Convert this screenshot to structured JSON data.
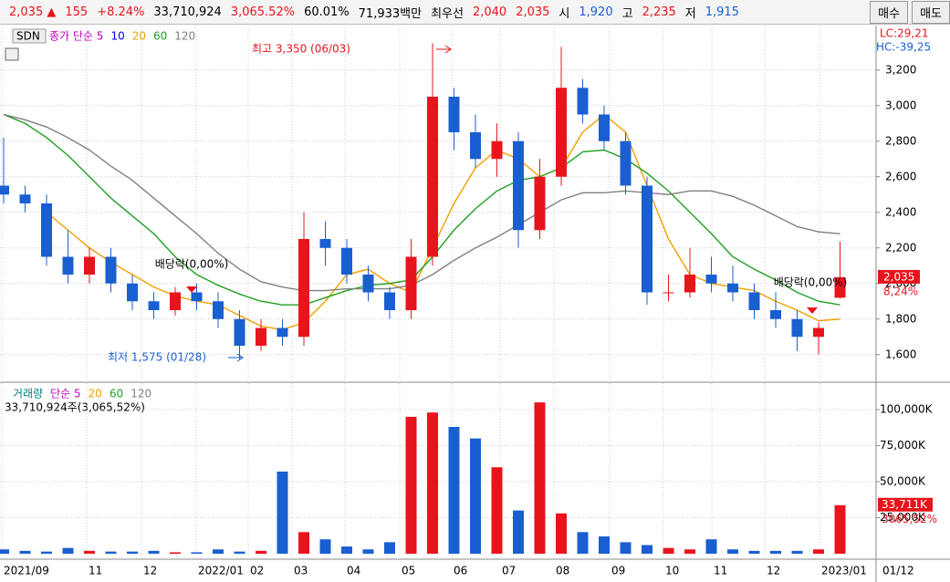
{
  "toolbar": {
    "items": [
      {
        "text": "2,035 ▲",
        "color": "#e8141c"
      },
      {
        "text": "155",
        "color": "#e8141c"
      },
      {
        "text": "+8.24%",
        "color": "#e8141c"
      },
      {
        "text": "33,710,924",
        "color": "#000000"
      },
      {
        "text": "3,065.52%",
        "color": "#e8141c"
      },
      {
        "text": "60.01%",
        "color": "#000000"
      },
      {
        "text": "71,933백만",
        "color": "#000000"
      },
      {
        "text": "최우선",
        "color": "#000000"
      },
      {
        "text": "2,040",
        "color": "#e8141c"
      },
      {
        "text": "2,035",
        "color": "#e8141c"
      },
      {
        "text": "시",
        "color": "#000000"
      },
      {
        "text": "1,920",
        "color": "#1a5fd0"
      },
      {
        "text": "고",
        "color": "#000000"
      },
      {
        "text": "2,235",
        "color": "#e8141c"
      },
      {
        "text": "저",
        "color": "#000000"
      },
      {
        "text": "1,915",
        "color": "#1a5fd0"
      }
    ],
    "buttons": [
      "매수",
      "매도"
    ]
  },
  "chart_data": [
    {
      "type": "candlestick",
      "symbol": "SDN",
      "legend": [
        {
          "text": "종가 단순 5",
          "color": "#c000c0"
        },
        {
          "text": "10",
          "color": "#0000ff"
        }
      ],
      "up_color": "#e8141c",
      "down_color": "#1a5fd0",
      "open": [
        2550,
        2500,
        2450,
        2150,
        2050,
        2150,
        2000,
        1900,
        1850,
        1950,
        1900,
        1800,
        1650,
        1750,
        1700,
        2250,
        2200,
        2050,
        1950,
        1850,
        2150,
        3050,
        2850,
        2700,
        2800,
        2300,
        2600,
        3100,
        2950,
        2800,
        2550,
        1950,
        1950,
        2050,
        2000,
        1950,
        1850,
        1800,
        1700,
        1920
      ],
      "high": [
        2820,
        2550,
        2500,
        2300,
        2200,
        2200,
        2050,
        1950,
        1980,
        2000,
        1950,
        1850,
        1800,
        1800,
        2400,
        2350,
        2250,
        2100,
        1980,
        2250,
        3350,
        3100,
        2950,
        2900,
        2850,
        2700,
        3330,
        3150,
        3000,
        2850,
        2600,
        2050,
        2200,
        2150,
        2100,
        2000,
        1950,
        1850,
        1780,
        2235
      ],
      "low": [
        2450,
        2400,
        2100,
        2000,
        2000,
        1950,
        1850,
        1800,
        1820,
        1850,
        1750,
        1575,
        1620,
        1650,
        1650,
        2100,
        2000,
        1900,
        1800,
        1800,
        2100,
        2750,
        2650,
        2600,
        2200,
        2250,
        2550,
        2900,
        2750,
        2500,
        1880,
        1900,
        1920,
        1950,
        1900,
        1800,
        1750,
        1620,
        1600,
        1915
      ],
      "close": [
        2500,
        2450,
        2150,
        2050,
        2150,
        2000,
        1900,
        1850,
        1950,
        1900,
        1800,
        1650,
        1750,
        1700,
        2250,
        2200,
        2050,
        1950,
        1850,
        2150,
        3050,
        2850,
        2700,
        2800,
        2300,
        2600,
        3100,
        2950,
        2800,
        2550,
        1950,
        1950,
        2050,
        2000,
        1950,
        1850,
        1800,
        1700,
        1750,
        2035
      ],
      "series": [
        {
          "name": "20",
          "color": "#f0a000",
          "values": [
            null,
            null,
            2400,
            2300,
            2200,
            2120,
            2050,
            1980,
            1930,
            1900,
            1880,
            1820,
            1760,
            1740,
            1780,
            1900,
            2050,
            2080,
            2000,
            1950,
            2200,
            2450,
            2650,
            2750,
            2700,
            2600,
            2650,
            2850,
            2950,
            2850,
            2550,
            2250,
            2050,
            2000,
            1980,
            1960,
            1900,
            1850,
            1790,
            1800
          ]
        },
        {
          "name": "60",
          "color": "#20a020",
          "values": [
            2950,
            2900,
            2820,
            2720,
            2600,
            2480,
            2380,
            2280,
            2150,
            2050,
            1990,
            1940,
            1900,
            1880,
            1880,
            1920,
            1960,
            1990,
            2000,
            2020,
            2150,
            2300,
            2420,
            2520,
            2580,
            2600,
            2650,
            2740,
            2750,
            2700,
            2620,
            2520,
            2400,
            2280,
            2150,
            2080,
            2020,
            1950,
            1900,
            1880
          ]
        },
        {
          "name": "120",
          "color": "#808080",
          "values": [
            2950,
            2920,
            2880,
            2820,
            2750,
            2660,
            2580,
            2480,
            2380,
            2280,
            2170,
            2080,
            2010,
            1980,
            1960,
            1960,
            1970,
            1970,
            1970,
            1990,
            2050,
            2130,
            2200,
            2260,
            2330,
            2400,
            2470,
            2510,
            2510,
            2520,
            2510,
            2500,
            2520,
            2520,
            2490,
            2440,
            2380,
            2320,
            2290,
            2280
          ]
        }
      ],
      "annotations": [
        {
          "text": "최고 3,350 (06/03)",
          "color": "#e8141c"
        },
        {
          "text": "최저 1,575 (01/28)",
          "color": "#1a5fd0"
        },
        {
          "text": "배당락(0,00%)",
          "color": "#000000"
        },
        {
          "text": "배당락(0,00%)",
          "color": "#000000"
        }
      ],
      "lc": "LC:29,21",
      "hc": "HC:-39,25",
      "last_price": {
        "value": 2035,
        "label": "2,035"
      },
      "last_change": "8,24%",
      "ylim": [
        1450,
        3450
      ],
      "yticks": [
        {
          "value": 1600,
          "label": "1,600"
        },
        {
          "value": 1800,
          "label": "1,800"
        },
        {
          "value": 2000,
          "label": "2,000"
        },
        {
          "value": 2200,
          "label": "2,200"
        },
        {
          "value": 2400,
          "label": "2,400"
        },
        {
          "value": 2600,
          "label": "2,600"
        },
        {
          "value": 2800,
          "label": "2,800"
        },
        {
          "value": 3000,
          "label": "3,000"
        },
        {
          "value": 3200,
          "label": "3,200"
        }
      ],
      "grid": true
    },
    {
      "type": "bar",
      "legend": [
        {
          "text": "거래량",
          "color": "#008080"
        },
        {
          "text": "단순 5",
          "color": "#c000c0"
        },
        {
          "text": "20",
          "color": "#f0a000"
        },
        {
          "text": "60",
          "color": "#20a020"
        },
        {
          "text": "120",
          "color": "#808080"
        }
      ],
      "subtitle": "33,710,924주(3,065,52%)",
      "values": [
        3000,
        2000,
        1500,
        4000,
        2000,
        1500,
        1500,
        2000,
        1000,
        1000,
        3000,
        1500,
        2000,
        57000,
        15000,
        10000,
        5000,
        3000,
        8000,
        95000,
        98000,
        88000,
        80000,
        60000,
        30000,
        105000,
        28000,
        15000,
        12000,
        8000,
        6000,
        4000,
        3000,
        10000,
        3000,
        2000,
        2000,
        2000,
        3000,
        33711
      ],
      "last_volume": {
        "value": 33711,
        "label": "33,711K"
      },
      "last_ratio": "3065,52%",
      "ylim": [
        0,
        118000
      ],
      "yticks": [
        {
          "value": 25000,
          "label": "25,000K"
        },
        {
          "value": 50000,
          "label": "50,000K"
        },
        {
          "value": 75000,
          "label": "75,000K"
        },
        {
          "value": 100000,
          "label": "100,000K"
        }
      ],
      "grid": true
    }
  ],
  "x_axis": [
    "2021/09",
    "11",
    "12",
    "2022/01",
    "02",
    "03",
    "04",
    "05",
    "06",
    "07",
    "08",
    "09",
    "10",
    "11",
    "12",
    "2023/01",
    "01/12"
  ]
}
